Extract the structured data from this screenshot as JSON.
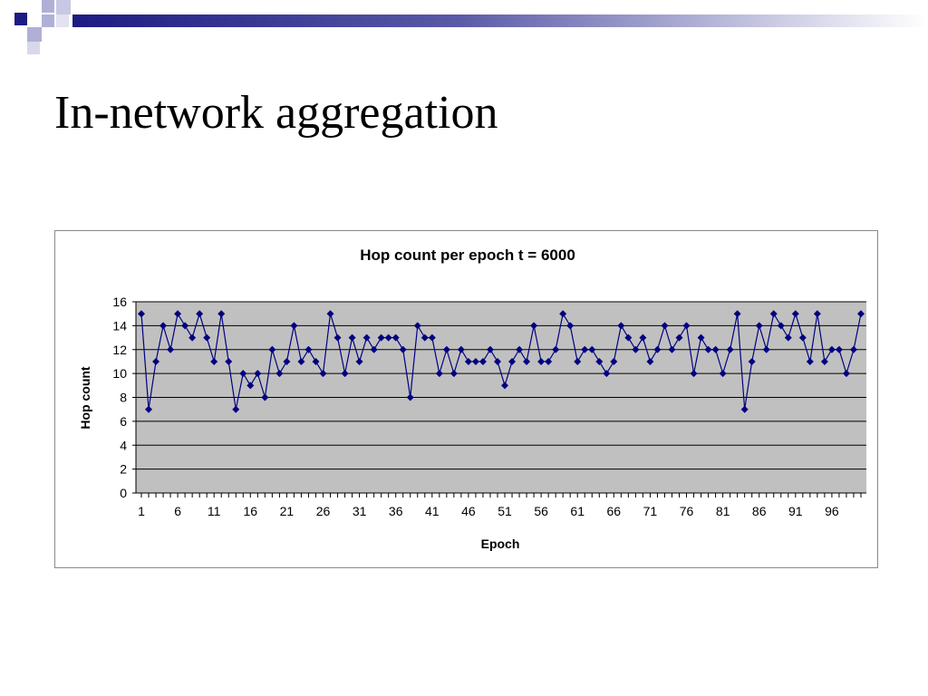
{
  "slide": {
    "title": "In-network aggregation"
  },
  "colors": {
    "deco_dark": "#1c1c82",
    "deco_light": "#b0b0d6",
    "plot_bg": "#c0c0c0",
    "grid": "#000000",
    "series": "#000080"
  },
  "chart_data": {
    "type": "line",
    "title": "Hop count per epoch t = 6000",
    "xlabel": "Epoch",
    "ylabel": "Hop count",
    "ylim": [
      0,
      16
    ],
    "yticks": [
      0,
      2,
      4,
      6,
      8,
      10,
      12,
      14,
      16
    ],
    "xtick_labels": [
      "1",
      "6",
      "11",
      "16",
      "21",
      "26",
      "31",
      "36",
      "41",
      "46",
      "51",
      "56",
      "61",
      "66",
      "71",
      "76",
      "81",
      "86",
      "91",
      "96"
    ],
    "grid": true,
    "legend": "none",
    "marker": "diamond",
    "x": [
      1,
      2,
      3,
      4,
      5,
      6,
      7,
      8,
      9,
      10,
      11,
      12,
      13,
      14,
      15,
      16,
      17,
      18,
      19,
      20,
      21,
      22,
      23,
      24,
      25,
      26,
      27,
      28,
      29,
      30,
      31,
      32,
      33,
      34,
      35,
      36,
      37,
      38,
      39,
      40,
      41,
      42,
      43,
      44,
      45,
      46,
      47,
      48,
      49,
      50,
      51,
      52,
      53,
      54,
      55,
      56,
      57,
      58,
      59,
      60,
      61,
      62,
      63,
      64,
      65,
      66,
      67,
      68,
      69,
      70,
      71,
      72,
      73,
      74,
      75,
      76,
      77,
      78,
      79,
      80,
      81,
      82,
      83,
      84,
      85,
      86,
      87,
      88,
      89,
      90,
      91,
      92,
      93,
      94,
      95,
      96,
      97,
      98,
      99,
      100
    ],
    "series": [
      {
        "values": [
          15,
          7,
          11,
          14,
          12,
          15,
          14,
          13,
          15,
          13,
          11,
          15,
          11,
          7,
          10,
          9,
          10,
          8,
          12,
          10,
          11,
          14,
          11,
          12,
          11,
          10,
          15,
          13,
          10,
          13,
          11,
          13,
          12,
          13,
          13,
          13,
          12,
          8,
          14,
          13,
          13,
          10,
          12,
          10,
          12,
          11,
          11,
          11,
          12,
          11,
          9,
          11,
          12,
          11,
          14,
          11,
          11,
          12,
          15,
          14,
          11,
          12,
          12,
          11,
          10,
          11,
          14,
          13,
          12,
          13,
          11,
          12,
          14,
          12,
          13,
          14,
          10,
          13,
          12,
          12,
          10,
          12,
          15,
          7,
          11,
          14,
          12,
          15,
          14,
          13,
          15,
          13,
          11,
          15,
          11,
          12,
          12,
          10,
          12,
          15
        ]
      }
    ]
  }
}
